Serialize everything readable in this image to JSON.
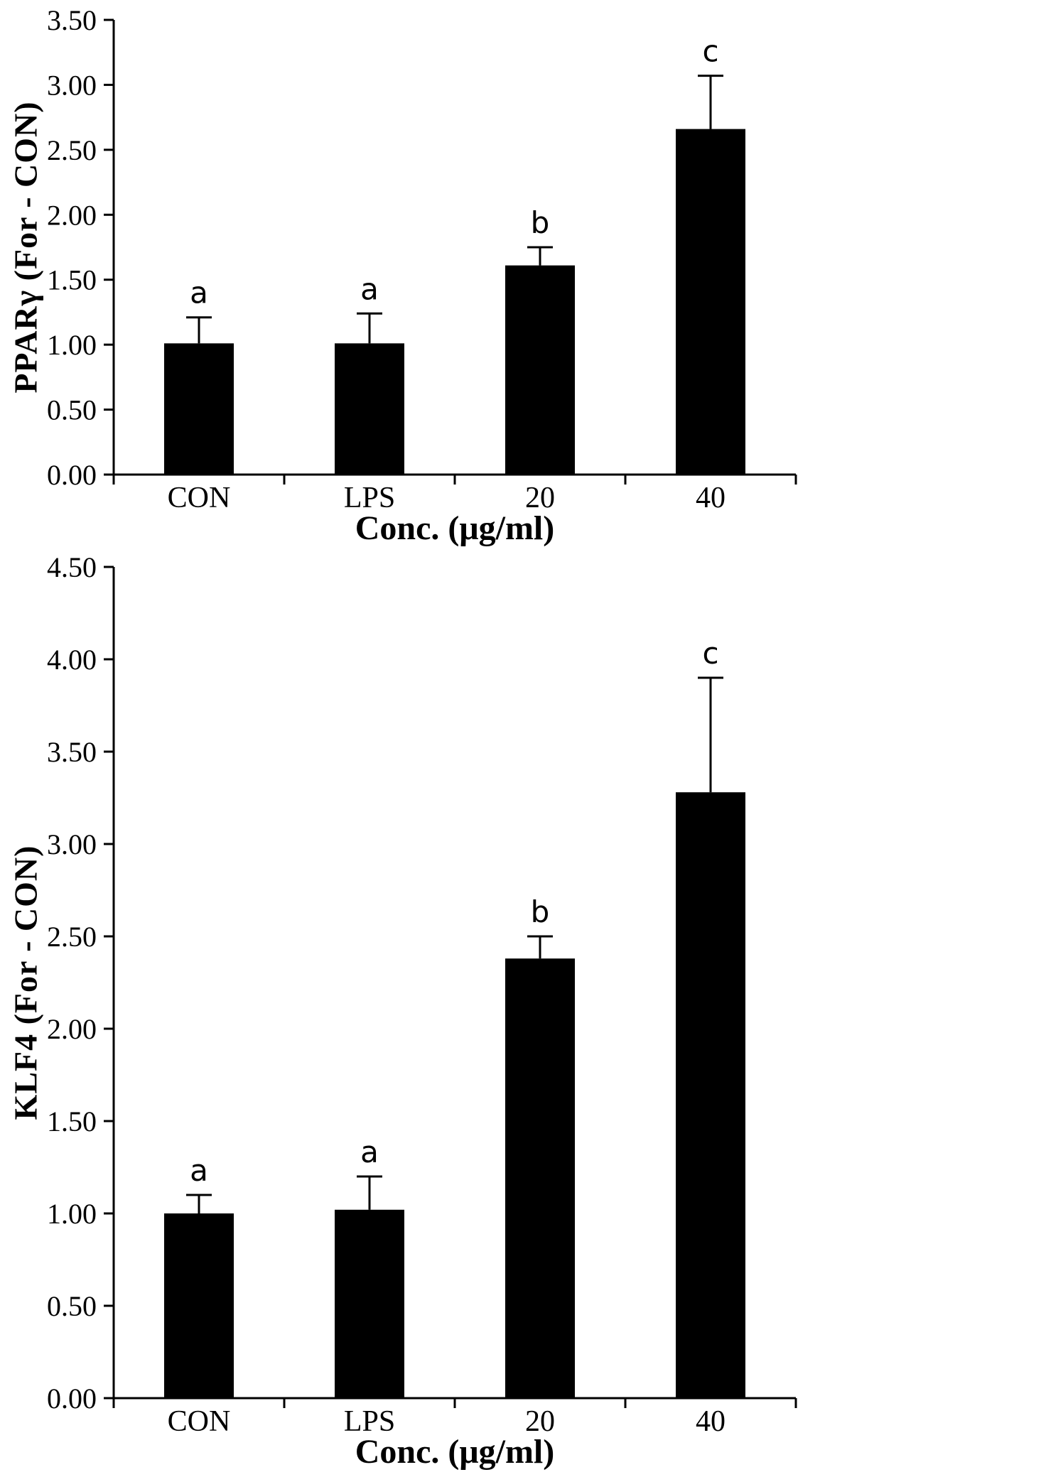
{
  "page": {
    "background": "#ffffff"
  },
  "chart_data": [
    {
      "type": "bar",
      "title": "",
      "ylabel": "PPARγ (For - CON)",
      "xlabel": "Conc. (μg/ml)",
      "categories": [
        "CON",
        "LPS",
        "20",
        "40"
      ],
      "values": [
        1.01,
        1.01,
        1.61,
        2.66
      ],
      "errors": [
        0.2,
        0.23,
        0.14,
        0.41
      ],
      "sig_letters": [
        "a",
        "a",
        "b",
        "c"
      ],
      "ylim": [
        0,
        3.5
      ],
      "ytick_step": 0.5,
      "ytick_labels": [
        "0.00",
        "0.50",
        "1.00",
        "1.50",
        "2.00",
        "2.50",
        "3.00",
        "3.50"
      ],
      "bar_color": "#000000",
      "axis_color": "#000000",
      "grid": false,
      "legend": false
    },
    {
      "type": "bar",
      "title": "",
      "ylabel": "KLF4 (For - CON)",
      "xlabel": "Conc. (μg/ml)",
      "categories": [
        "CON",
        "LPS",
        "20",
        "40"
      ],
      "values": [
        1.0,
        1.02,
        2.38,
        3.28
      ],
      "errors": [
        0.1,
        0.18,
        0.12,
        0.62
      ],
      "sig_letters": [
        "a",
        "a",
        "b",
        "c"
      ],
      "ylim": [
        0,
        4.5
      ],
      "ytick_step": 0.5,
      "ytick_labels": [
        "0.00",
        "0.50",
        "1.00",
        "1.50",
        "2.00",
        "2.50",
        "3.00",
        "3.50",
        "4.00",
        "4.50"
      ],
      "bar_color": "#000000",
      "axis_color": "#000000",
      "grid": false,
      "legend": false
    }
  ]
}
